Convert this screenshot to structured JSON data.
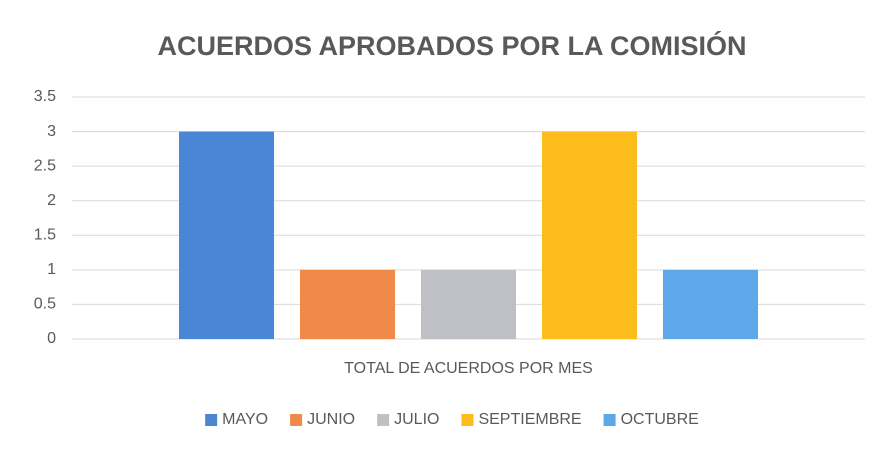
{
  "chart_data": {
    "type": "bar",
    "title": "ACUERDOS APROBADOS POR LA COMISIÓN",
    "categories": [
      "TOTAL DE ACUERDOS POR MES"
    ],
    "series": [
      {
        "name": "MAYO",
        "color": "#4a85d6",
        "values": [
          3
        ]
      },
      {
        "name": "JUNIO",
        "color": "#f0894a",
        "values": [
          1
        ]
      },
      {
        "name": "JULIO",
        "color": "#bfc0c6",
        "values": [
          1
        ]
      },
      {
        "name": "SEPTIEMBRE",
        "color": "#fbbc1c",
        "values": [
          3
        ]
      },
      {
        "name": "OCTUBRE",
        "color": "#5ea8ea",
        "values": [
          1
        ]
      }
    ],
    "ylim": [
      0,
      3.5
    ],
    "yticks": [
      0,
      0.5,
      1,
      1.5,
      2,
      2.5,
      3,
      3.5
    ],
    "grid": true,
    "legend": "bottom"
  }
}
